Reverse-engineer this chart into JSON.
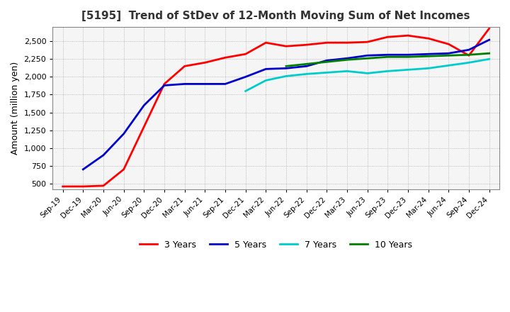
{
  "title": "[5195]  Trend of StDev of 12-Month Moving Sum of Net Incomes",
  "ylabel": "Amount (million yen)",
  "line_colors": [
    "#ff0000",
    "#0000cd",
    "#00cccc",
    "#008000"
  ],
  "line_labels": [
    "3 Years",
    "5 Years",
    "7 Years",
    "10 Years"
  ],
  "background_color": "#ffffff",
  "plot_bg_color": "#f5f5f5",
  "grid_color": "#aaaaaa",
  "3y_x": [
    0,
    1,
    2,
    3,
    4,
    5,
    6,
    7,
    8,
    9,
    10,
    11,
    12,
    13,
    14,
    15,
    16,
    17,
    18,
    19,
    20,
    21
  ],
  "3y_y": [
    460,
    460,
    470,
    700,
    1300,
    1900,
    2150,
    2200,
    2270,
    2320,
    2480,
    2430,
    2450,
    2480,
    2480,
    2490,
    2560,
    2580,
    2540,
    2460,
    2300,
    2680
  ],
  "5y_x": [
    1,
    2,
    3,
    4,
    5,
    6,
    7,
    8,
    9,
    10,
    11,
    12,
    13,
    14,
    15,
    16,
    17,
    18,
    19,
    20,
    21
  ],
  "5y_y": [
    700,
    900,
    1200,
    1600,
    1880,
    1900,
    1900,
    1900,
    2000,
    2110,
    2120,
    2150,
    2230,
    2260,
    2300,
    2310,
    2310,
    2320,
    2330,
    2380,
    2520
  ],
  "7y_x": [
    9,
    10,
    11,
    12,
    13,
    14,
    15,
    16,
    17,
    18,
    19,
    20,
    21
  ],
  "7y_y": [
    1800,
    1950,
    2010,
    2040,
    2060,
    2080,
    2050,
    2080,
    2100,
    2120,
    2160,
    2200,
    2250
  ],
  "10y_x": [
    11,
    12,
    13,
    14,
    15,
    16,
    17,
    18,
    19,
    20,
    21
  ],
  "10y_y": [
    2150,
    2180,
    2210,
    2240,
    2260,
    2280,
    2280,
    2290,
    2300,
    2310,
    2330
  ],
  "xlabels": [
    "Sep-19",
    "Dec-19",
    "Mar-20",
    "Jun-20",
    "Sep-20",
    "Dec-20",
    "Mar-21",
    "Jun-21",
    "Sep-21",
    "Dec-21",
    "Mar-22",
    "Jun-22",
    "Sep-22",
    "Dec-22",
    "Mar-23",
    "Jun-23",
    "Sep-23",
    "Dec-23",
    "Mar-24",
    "Jun-24",
    "Sep-24",
    "Dec-24"
  ],
  "ylim": [
    420,
    2700
  ],
  "yticks": [
    500,
    750,
    1000,
    1250,
    1500,
    1750,
    2000,
    2250,
    2500
  ]
}
